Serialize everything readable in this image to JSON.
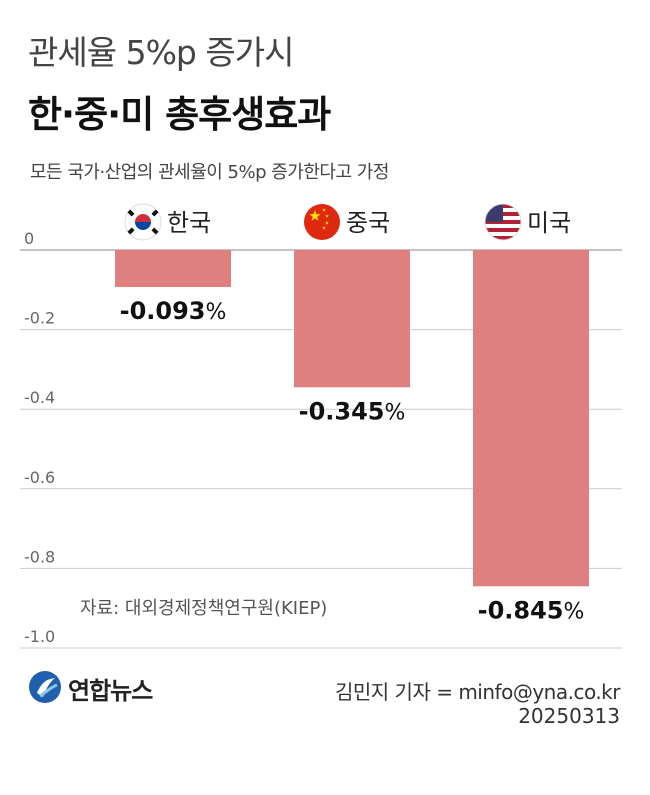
{
  "header": {
    "title_line1": "관세율 5%p 증가시",
    "title_line2": "한·중·미 총후생효과",
    "subtitle": "모든 국가·산업의 관세율이 5%p 증가한다고 가정"
  },
  "chart_data": {
    "type": "bar",
    "categories": [
      "한국",
      "중국",
      "미국"
    ],
    "flag_icons": [
      "korea-flag-icon",
      "china-flag-icon",
      "usa-flag-icon"
    ],
    "values": [
      -0.093,
      -0.345,
      -0.845
    ],
    "value_labels": [
      "-0.093%",
      "-0.345%",
      "-0.845%"
    ],
    "yticks": [
      0,
      -0.2,
      -0.4,
      -0.6,
      -0.8,
      -1.0
    ],
    "ytick_labels": [
      "0",
      "-0.2",
      "-0.4",
      "-0.6",
      "-0.8",
      "-1.0"
    ],
    "ylim": [
      -1.0,
      0
    ],
    "grid": true,
    "bar_color": "#df7f7f",
    "source": "자료: 대외경제정책연구원(KIEP)"
  },
  "footer": {
    "logo_text": "연합뉴스",
    "credit": "김민지 기자 = minfo@yna.co.kr",
    "date": "20250313"
  },
  "colors": {
    "bar": "#df7f7f",
    "grid": "#cccccc",
    "logo_blue": "#1f5fae"
  }
}
